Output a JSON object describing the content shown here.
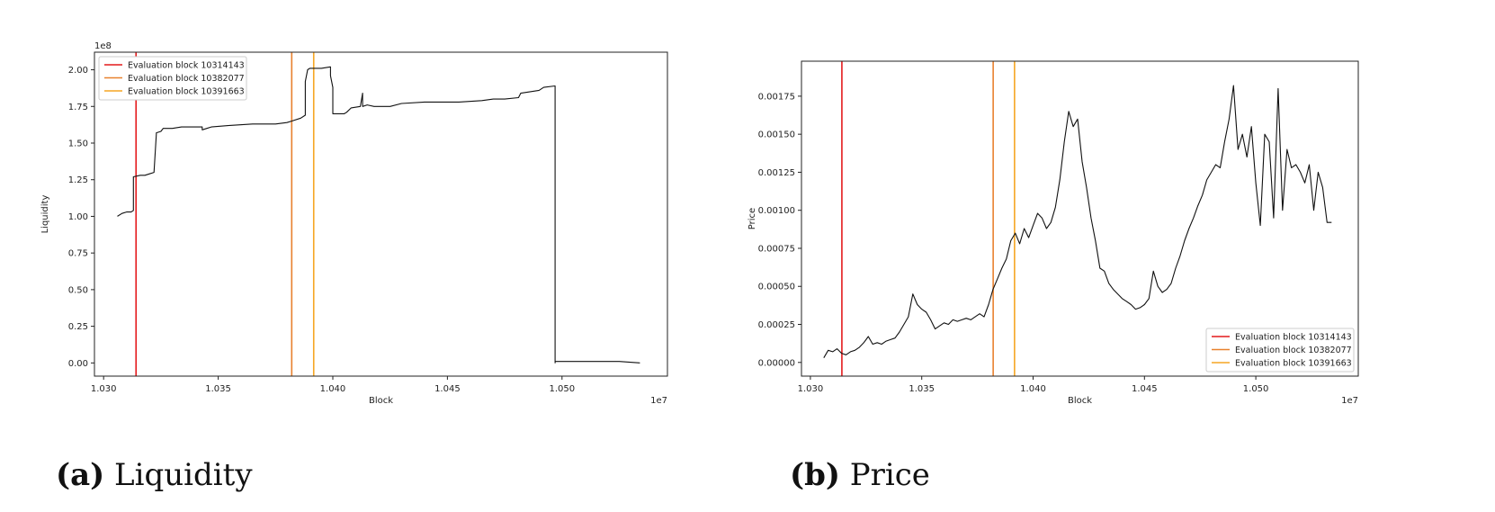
{
  "figures": [
    {
      "caption_label": "(a)",
      "caption_text": "Liquidity"
    },
    {
      "caption_label": "(b)",
      "caption_text": "Price"
    }
  ],
  "chart_data": [
    {
      "type": "line",
      "xlabel": "Block",
      "ylabel": "Liquidity",
      "x_offset_text": "1e7",
      "y_offset_text": "1e8",
      "xlim": [
        1.0296,
        1.0546
      ],
      "ylim": [
        -0.09,
        2.12
      ],
      "xticks": [
        1.03,
        1.035,
        1.04,
        1.045,
        1.05
      ],
      "xtick_labels": [
        "1.030",
        "1.035",
        "1.040",
        "1.045",
        "1.050"
      ],
      "yticks": [
        0.0,
        0.25,
        0.5,
        0.75,
        1.0,
        1.25,
        1.5,
        1.75,
        2.0
      ],
      "ytick_labels": [
        "0.00",
        "0.25",
        "0.50",
        "0.75",
        "1.00",
        "1.25",
        "1.50",
        "1.75",
        "2.00"
      ],
      "legend_position": "upper-left",
      "grid": false,
      "vlines": [
        {
          "name": "Evaluation block 10314143",
          "x": 1.0314143,
          "color": "#e41a1c"
        },
        {
          "name": "Evaluation block 10382077",
          "x": 1.0382077,
          "color": "#e8812e"
        },
        {
          "name": "Evaluation block 10391663",
          "x": 1.0391663,
          "color": "#f5a623"
        }
      ],
      "series": [
        {
          "color": "#111111",
          "x": [
            1.0306,
            1.0308,
            1.031,
            1.0312,
            1.0313,
            1.0313,
            1.0316,
            1.0318,
            1.032,
            1.0322,
            1.0323,
            1.0323,
            1.0325,
            1.0326,
            1.033,
            1.0334,
            1.0343,
            1.0343,
            1.0345,
            1.0347,
            1.0355,
            1.0365,
            1.0375,
            1.038,
            1.0382,
            1.0386,
            1.0388,
            1.0388,
            1.0389,
            1.039,
            1.039,
            1.0395,
            1.0399,
            1.0399,
            1.04,
            1.04,
            1.0405,
            1.0406,
            1.0408,
            1.0412,
            1.0413,
            1.0413,
            1.0413,
            1.0415,
            1.0418,
            1.0425,
            1.043,
            1.044,
            1.0455,
            1.0465,
            1.047,
            1.0475,
            1.0481,
            1.0482,
            1.049,
            1.0492,
            1.0497,
            1.0497,
            1.0497,
            1.0505,
            1.0515,
            1.0525,
            1.0534
          ],
          "y": [
            1.0,
            1.02,
            1.03,
            1.03,
            1.04,
            1.27,
            1.28,
            1.28,
            1.29,
            1.3,
            1.56,
            1.57,
            1.58,
            1.6,
            1.6,
            1.61,
            1.61,
            1.59,
            1.6,
            1.61,
            1.62,
            1.63,
            1.63,
            1.64,
            1.65,
            1.67,
            1.69,
            1.92,
            2.0,
            2.01,
            2.01,
            2.01,
            2.02,
            1.96,
            1.88,
            1.7,
            1.7,
            1.71,
            1.74,
            1.75,
            1.84,
            1.75,
            1.75,
            1.76,
            1.75,
            1.75,
            1.77,
            1.78,
            1.78,
            1.79,
            1.8,
            1.8,
            1.81,
            1.84,
            1.86,
            1.88,
            1.89,
            0.0,
            0.01,
            0.01,
            0.01,
            0.01,
            0.0
          ]
        }
      ]
    },
    {
      "type": "line",
      "xlabel": "Block",
      "ylabel": "Price",
      "x_offset_text": "1e7",
      "xlim": [
        1.0296,
        1.0546
      ],
      "ylim": [
        -9e-05,
        0.00198
      ],
      "xticks": [
        1.03,
        1.035,
        1.04,
        1.045,
        1.05
      ],
      "xtick_labels": [
        "1.030",
        "1.035",
        "1.040",
        "1.045",
        "1.050"
      ],
      "yticks": [
        0.0,
        0.00025,
        0.0005,
        0.00075,
        0.001,
        0.00125,
        0.0015,
        0.00175
      ],
      "ytick_labels": [
        "0.00000",
        "0.00025",
        "0.00050",
        "0.00075",
        "0.00100",
        "0.00125",
        "0.00150",
        "0.00175"
      ],
      "legend_position": "lower-right",
      "grid": false,
      "vlines": [
        {
          "name": "Evaluation block 10314143",
          "x": 1.0314143,
          "color": "#e41a1c"
        },
        {
          "name": "Evaluation block 10382077",
          "x": 1.0382077,
          "color": "#e8812e"
        },
        {
          "name": "Evaluation block 10391663",
          "x": 1.0391663,
          "color": "#f5a623"
        }
      ],
      "series": [
        {
          "color": "#111111",
          "x": [
            1.0306,
            1.0308,
            1.031,
            1.0312,
            1.0314,
            1.0316,
            1.0318,
            1.032,
            1.0322,
            1.0324,
            1.0326,
            1.0328,
            1.033,
            1.0332,
            1.0334,
            1.0336,
            1.0338,
            1.034,
            1.0342,
            1.0344,
            1.0346,
            1.0348,
            1.035,
            1.0352,
            1.0354,
            1.0356,
            1.0358,
            1.036,
            1.0362,
            1.0364,
            1.0366,
            1.0368,
            1.037,
            1.0372,
            1.0374,
            1.0376,
            1.0378,
            1.038,
            1.0382,
            1.0384,
            1.0386,
            1.0388,
            1.039,
            1.0392,
            1.0394,
            1.0396,
            1.0398,
            1.04,
            1.0402,
            1.0404,
            1.0406,
            1.0408,
            1.041,
            1.0412,
            1.0414,
            1.0416,
            1.0418,
            1.042,
            1.0422,
            1.0424,
            1.0426,
            1.0428,
            1.043,
            1.0432,
            1.0434,
            1.0436,
            1.0438,
            1.044,
            1.0442,
            1.0444,
            1.0446,
            1.0448,
            1.045,
            1.0452,
            1.0454,
            1.0456,
            1.0458,
            1.046,
            1.0462,
            1.0464,
            1.0466,
            1.0468,
            1.047,
            1.0472,
            1.0474,
            1.0476,
            1.0478,
            1.048,
            1.0482,
            1.0484,
            1.0486,
            1.0488,
            1.049,
            1.0492,
            1.0494,
            1.0496,
            1.0498,
            1.05,
            1.0502,
            1.0504,
            1.0506,
            1.0508,
            1.051,
            1.0512,
            1.0514,
            1.0516,
            1.0518,
            1.052,
            1.0522,
            1.0524,
            1.0526,
            1.0528,
            1.053,
            1.0532,
            1.0534
          ],
          "y": [
            3e-05,
            8e-05,
            7e-05,
            9e-05,
            6e-05,
            5e-05,
            7e-05,
            8e-05,
            0.0001,
            0.00013,
            0.00017,
            0.00012,
            0.00013,
            0.00012,
            0.00014,
            0.00015,
            0.00016,
            0.0002,
            0.00025,
            0.0003,
            0.00045,
            0.00038,
            0.00035,
            0.00033,
            0.00028,
            0.00022,
            0.00024,
            0.00026,
            0.00025,
            0.00028,
            0.00027,
            0.00028,
            0.00029,
            0.00028,
            0.0003,
            0.00032,
            0.0003,
            0.00038,
            0.00048,
            0.00055,
            0.00062,
            0.00068,
            0.0008,
            0.00085,
            0.00078,
            0.00088,
            0.00082,
            0.0009,
            0.00098,
            0.00095,
            0.00088,
            0.00092,
            0.00102,
            0.0012,
            0.00145,
            0.00165,
            0.00155,
            0.0016,
            0.00132,
            0.00115,
            0.00095,
            0.0008,
            0.00062,
            0.0006,
            0.00052,
            0.00048,
            0.00045,
            0.00042,
            0.0004,
            0.00038,
            0.00035,
            0.00036,
            0.00038,
            0.00042,
            0.0006,
            0.0005,
            0.00046,
            0.00048,
            0.00052,
            0.00062,
            0.0007,
            0.0008,
            0.00088,
            0.00095,
            0.00103,
            0.0011,
            0.0012,
            0.00125,
            0.0013,
            0.00128,
            0.00145,
            0.0016,
            0.00182,
            0.0014,
            0.0015,
            0.00135,
            0.00155,
            0.00118,
            0.0009,
            0.0015,
            0.00145,
            0.00095,
            0.0018,
            0.001,
            0.0014,
            0.00128,
            0.0013,
            0.00125,
            0.00118,
            0.0013,
            0.001,
            0.00125,
            0.00115,
            0.00092,
            0.00092
          ]
        }
      ]
    }
  ]
}
